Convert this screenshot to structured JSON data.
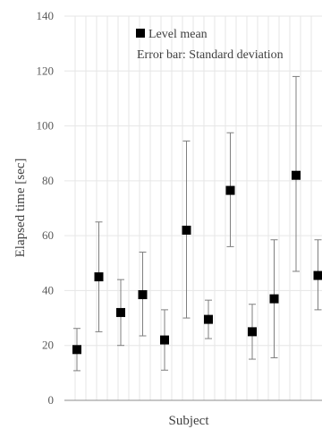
{
  "chart_data": {
    "type": "scatter",
    "xlabel": "Subject",
    "ylabel": "Elapsed time [sec]",
    "ylim": [
      0,
      140
    ],
    "yticks": [
      "0",
      "20",
      "40",
      "60",
      "80",
      "100",
      "120",
      "140"
    ],
    "grid": true,
    "legend": {
      "placement": "top-right",
      "series_label": "Level mean",
      "note": "Error bar: Standard deviation"
    },
    "series": [
      {
        "name": "Level mean",
        "points": [
          {
            "x": 1,
            "y": 18.5,
            "low": 10.8,
            "high": 26.2
          },
          {
            "x": 2,
            "y": 45,
            "low": 25,
            "high": 65
          },
          {
            "x": 3,
            "y": 32,
            "low": 20,
            "high": 44
          },
          {
            "x": 4,
            "y": 38.5,
            "low": 23.5,
            "high": 54
          },
          {
            "x": 5,
            "y": 22,
            "low": 11,
            "high": 33
          },
          {
            "x": 6,
            "y": 62,
            "low": 30,
            "high": 94.5
          },
          {
            "x": 7,
            "y": 29.5,
            "low": 22.5,
            "high": 36.5
          },
          {
            "x": 8,
            "y": 76.5,
            "low": 56,
            "high": 97.5
          },
          {
            "x": 9,
            "y": 25,
            "low": 15,
            "high": 35
          },
          {
            "x": 10,
            "y": 37,
            "low": 15.5,
            "high": 58.5
          },
          {
            "x": 11,
            "y": 82,
            "low": 47,
            "high": 118
          },
          {
            "x": 12,
            "y": 45.5,
            "low": 33,
            "high": 58.5
          }
        ]
      }
    ]
  }
}
